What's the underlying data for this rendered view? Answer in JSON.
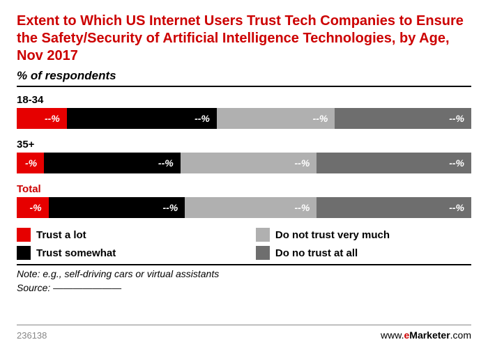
{
  "title": "Extent to Which US Internet Users Trust Tech Companies to Ensure the Safety/Security of Artificial Intelligence Technologies, by Age, Nov 2017",
  "subtitle": "% of respondents",
  "colors": {
    "trust_a_lot": "#e60000",
    "trust_somewhat": "#000000",
    "not_very_much": "#b0b0b0",
    "not_at_all": "#6e6e6e",
    "title": "#cc0000",
    "text": "#000000"
  },
  "rows": [
    {
      "label": "18-34",
      "label_color": "#000000",
      "segments": [
        {
          "key": "trust_a_lot",
          "value_label": "--%",
          "width_pct": 11,
          "color": "#e60000"
        },
        {
          "key": "trust_somewhat",
          "value_label": "--%",
          "width_pct": 33,
          "color": "#000000"
        },
        {
          "key": "not_very_much",
          "value_label": "--%",
          "width_pct": 26,
          "color": "#b0b0b0"
        },
        {
          "key": "not_at_all",
          "value_label": "--%",
          "width_pct": 30,
          "color": "#6e6e6e"
        }
      ]
    },
    {
      "label": "35+",
      "label_color": "#000000",
      "segments": [
        {
          "key": "trust_a_lot",
          "value_label": "-%",
          "width_pct": 6,
          "color": "#e60000"
        },
        {
          "key": "trust_somewhat",
          "value_label": "--%",
          "width_pct": 30,
          "color": "#000000"
        },
        {
          "key": "not_very_much",
          "value_label": "--%",
          "width_pct": 30,
          "color": "#b0b0b0"
        },
        {
          "key": "not_at_all",
          "value_label": "--%",
          "width_pct": 34,
          "color": "#6e6e6e"
        }
      ]
    },
    {
      "label": "Total",
      "label_color": "#cc0000",
      "segments": [
        {
          "key": "trust_a_lot",
          "value_label": "-%",
          "width_pct": 7,
          "color": "#e60000"
        },
        {
          "key": "trust_somewhat",
          "value_label": "--%",
          "width_pct": 30,
          "color": "#000000"
        },
        {
          "key": "not_very_much",
          "value_label": "--%",
          "width_pct": 29,
          "color": "#b0b0b0"
        },
        {
          "key": "not_at_all",
          "value_label": "--%",
          "width_pct": 34,
          "color": "#6e6e6e"
        }
      ]
    }
  ],
  "legend": [
    {
      "label": "Trust a lot",
      "color": "#e60000"
    },
    {
      "label": "Do not trust very much",
      "color": "#b0b0b0"
    },
    {
      "label": "Trust somewhat",
      "color": "#000000"
    },
    {
      "label": "Do no trust at all",
      "color": "#6e6e6e"
    }
  ],
  "note": "Note: e.g., self-driving cars or virtual assistants",
  "source_prefix": "Source: ",
  "source_redacted": "———————",
  "chart_id": "236138",
  "brand_prefix": "www.",
  "brand_e": "e",
  "brand_rest": "Marketer",
  "brand_suffix": ".com"
}
